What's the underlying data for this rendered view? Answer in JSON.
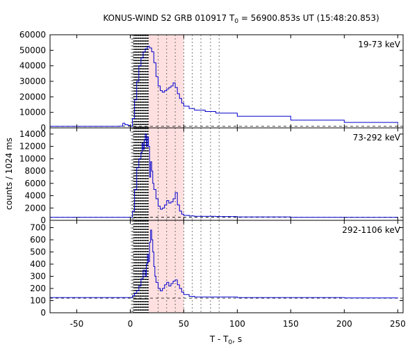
{
  "chart_data": {
    "type": "line",
    "title": "KONUS-WIND S2 GRB 010917 T",
    "title_sub": "0",
    "title_rest": " = 56900.853s UT (15:48:20.853)",
    "xlabel": "T - T",
    "xlabel_sub": "0",
    "xlabel_rest": ", s",
    "ylabel": "counts / 1024 ms",
    "xlim": [
      -75,
      255
    ],
    "x_ticks": [
      -50,
      0,
      50,
      100,
      150,
      200,
      250
    ],
    "x_tick_labels": [
      "-50",
      "0",
      "50",
      "100",
      "150",
      "200",
      "250"
    ],
    "shaded_interval": [
      17,
      50
    ],
    "vertical_dashed_lines": [
      1,
      2,
      3,
      26,
      34,
      42,
      50,
      58,
      66,
      75,
      83
    ],
    "dense_dashed_range": [
      3,
      17
    ],
    "colors": {
      "series": "#0000cc",
      "shade": "#ffe0e0",
      "axis": "#000000",
      "marker": "#555555"
    },
    "panels": [
      {
        "label": "19-73 keV",
        "ylim": [
          0,
          60000
        ],
        "y_ticks": [
          0,
          10000,
          20000,
          30000,
          40000,
          50000,
          60000
        ],
        "y_tick_labels": [
          "0",
          "10000",
          "20000",
          "30000",
          "40000",
          "50000",
          "60000"
        ],
        "background": 1000,
        "series": {
          "x": [
            -75,
            -10,
            -7,
            -5,
            -2,
            0,
            2,
            4,
            6,
            8,
            10,
            12,
            14,
            16,
            18,
            20,
            22,
            24,
            26,
            28,
            30,
            32,
            34,
            36,
            38,
            40,
            42,
            44,
            46,
            48,
            50,
            55,
            60,
            70,
            80,
            100,
            150,
            200,
            250
          ],
          "y": [
            1000,
            1200,
            3000,
            2000,
            1500,
            1000,
            6000,
            18000,
            30000,
            40000,
            45000,
            49000,
            51000,
            52500,
            51500,
            49000,
            42000,
            33000,
            27000,
            24000,
            23000,
            24000,
            25000,
            26000,
            27000,
            29000,
            26000,
            22000,
            19000,
            16000,
            14000,
            12500,
            11500,
            10500,
            9500,
            7500,
            5000,
            3500,
            2500
          ]
        }
      },
      {
        "label": "73-292 keV",
        "ylim": [
          0,
          15000
        ],
        "y_ticks": [
          0,
          2000,
          4000,
          6000,
          8000,
          10000,
          12000,
          14000
        ],
        "y_tick_labels": [
          "0",
          "2000",
          "4000",
          "6000",
          "8000",
          "10000",
          "12000",
          "14000"
        ],
        "background": 500,
        "series": {
          "x": [
            -75,
            0,
            2,
            4,
            6,
            8,
            10,
            11,
            12,
            13,
            14,
            15,
            16,
            17,
            18,
            19,
            20,
            21,
            22,
            24,
            26,
            28,
            30,
            32,
            34,
            36,
            38,
            40,
            42,
            44,
            46,
            48,
            50,
            55,
            60,
            80,
            100,
            150,
            200,
            250
          ],
          "y": [
            500,
            500,
            1500,
            5000,
            8500,
            10000,
            11000,
            12500,
            11500,
            13000,
            14000,
            12000,
            13500,
            12000,
            7000,
            9500,
            8000,
            6000,
            5000,
            3500,
            2300,
            1800,
            2000,
            2500,
            3200,
            2800,
            3000,
            3500,
            4500,
            2500,
            1500,
            1000,
            800,
            700,
            650,
            600,
            550,
            500,
            480,
            470
          ]
        }
      },
      {
        "label": "292-1106 keV",
        "ylim": [
          0,
          760
        ],
        "y_ticks": [
          0,
          100,
          200,
          300,
          400,
          500,
          600,
          700
        ],
        "y_tick_labels": [
          "0",
          "100",
          "200",
          "300",
          "400",
          "500",
          "600",
          "700"
        ],
        "background": 120,
        "series": {
          "x": [
            -75,
            0,
            2,
            4,
            6,
            8,
            10,
            12,
            14,
            15,
            16,
            17,
            18,
            19,
            20,
            21,
            22,
            23,
            24,
            26,
            28,
            30,
            32,
            34,
            36,
            38,
            40,
            42,
            44,
            46,
            48,
            50,
            55,
            60,
            100,
            150,
            200,
            250
          ],
          "y": [
            125,
            125,
            140,
            160,
            180,
            220,
            280,
            350,
            300,
            400,
            480,
            420,
            580,
            680,
            600,
            500,
            380,
            300,
            250,
            200,
            180,
            200,
            230,
            250,
            220,
            240,
            260,
            270,
            230,
            200,
            170,
            150,
            135,
            130,
            125,
            125,
            122,
            120
          ]
        }
      }
    ]
  }
}
